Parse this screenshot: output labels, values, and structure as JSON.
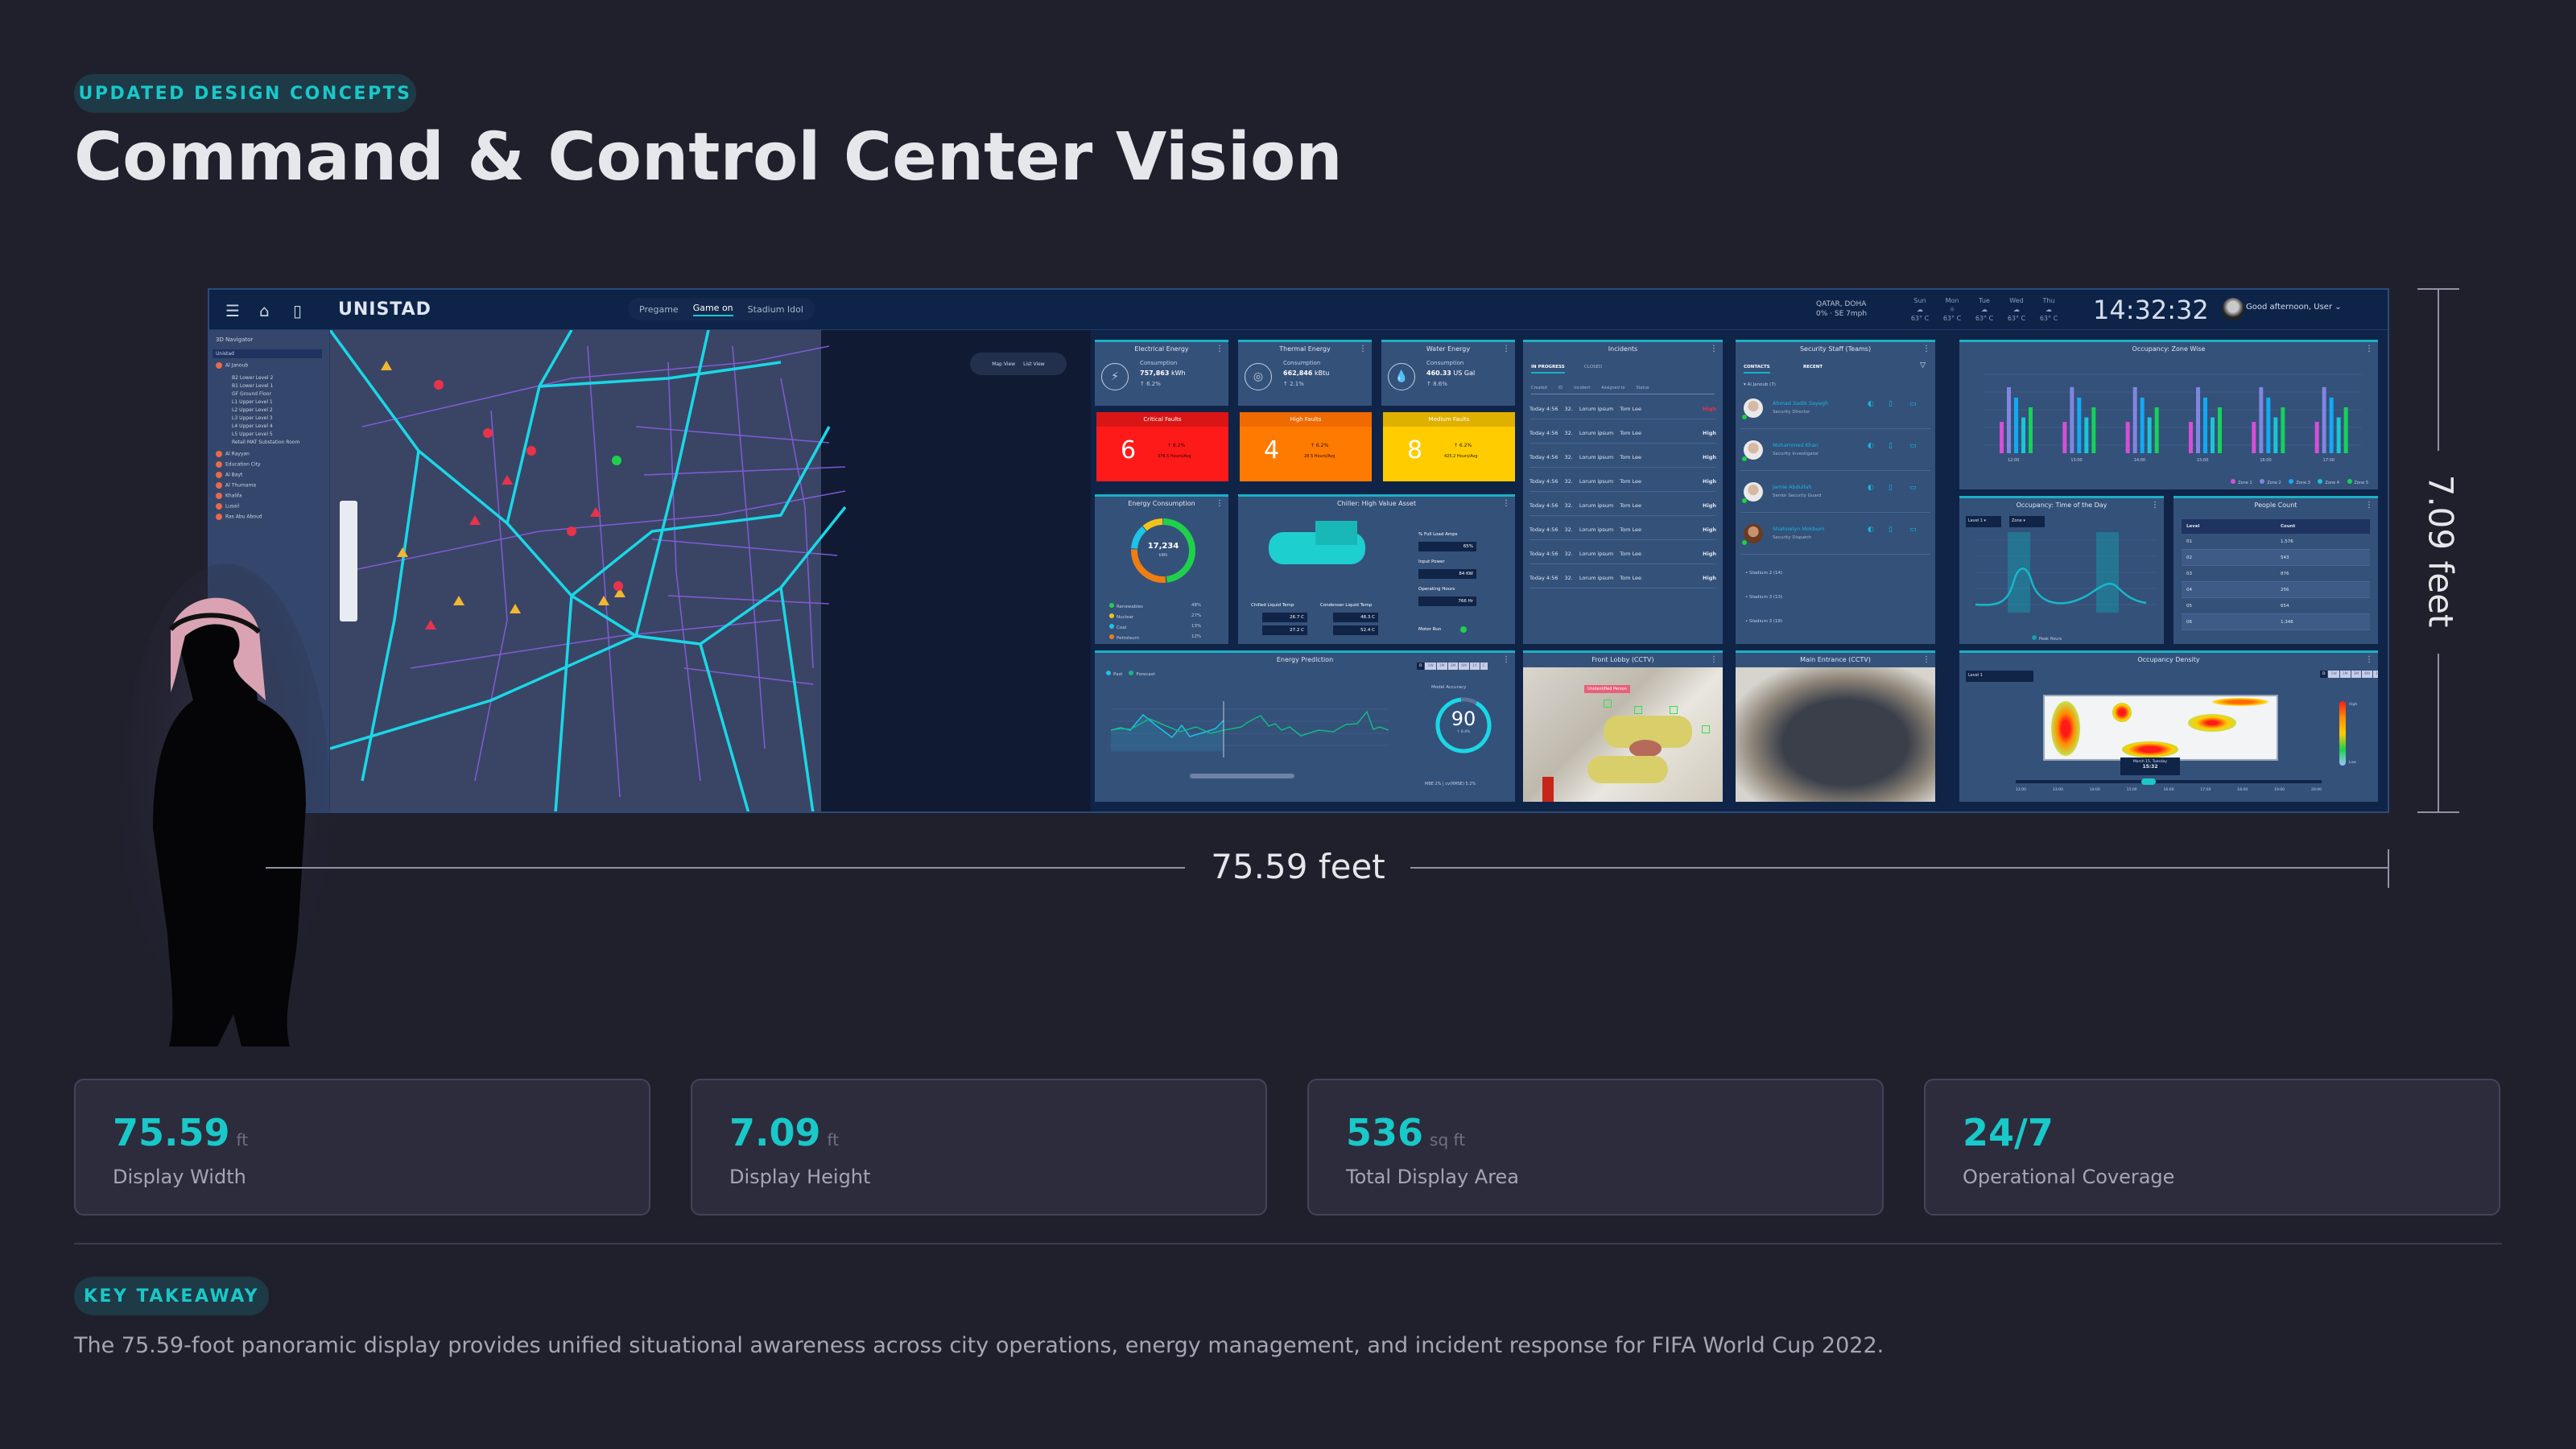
{
  "header": {
    "badge": "UPDATED DESIGN CONCEPTS",
    "title": "Command & Control Center Vision"
  },
  "dashboard": {
    "app_name": "UNISTAD",
    "icons": [
      "menu-icon",
      "home-icon",
      "map-book-icon"
    ],
    "modes": [
      {
        "label": "Pregame",
        "active": false
      },
      {
        "label": "Game on",
        "active": true
      },
      {
        "label": "Stadium Idol",
        "active": false
      }
    ],
    "weather": {
      "location": "QATAR, DOHA",
      "humidity": "0%",
      "wind": "SE 7mph",
      "days": [
        {
          "day": "Sun",
          "temp": "63° C"
        },
        {
          "day": "Mon",
          "temp": "63° C"
        },
        {
          "day": "Tue",
          "temp": "63° C"
        },
        {
          "day": "Wed",
          "temp": "63° C"
        },
        {
          "day": "Thu",
          "temp": "63° C"
        }
      ]
    },
    "clock": "14:32:32",
    "greeting": "Good afternoon, User",
    "navigator": {
      "title": "3D Navigator",
      "root": "Unistad",
      "expanded": "Al Janoub",
      "levels": [
        "B2 Lower Level 2",
        "B1 Lower Level 1",
        "GF Ground Floor",
        "L1 Upper Level 1",
        "L2 Upper Level 2",
        "L3 Upper Level 3",
        "L4 Upper Level 4",
        "L5 Upper Level 5",
        "Retail MAT Substation Room"
      ],
      "stadiums": [
        "Al Rayyan",
        "Education City",
        "Al Bayt",
        "Al Thumama",
        "Khalifa",
        "Lusail",
        "Ras Abu Aboud"
      ]
    },
    "map_view": {
      "map_label": "Map View",
      "list_label": "List View"
    },
    "energy": [
      {
        "title": "Electrical Energy",
        "label": "Consumption",
        "value": "757,863",
        "unit": "kWh",
        "change": "↑ 6.2%",
        "icon": "lightning-icon"
      },
      {
        "title": "Thermal Energy",
        "label": "Consumption",
        "value": "662,846",
        "unit": "kBtu",
        "change": "↑ 2.1%",
        "icon": "flame-icon"
      },
      {
        "title": "Water Energy",
        "label": "Consumption",
        "value": "460.33",
        "unit": "US Gal",
        "change": "↑ 8.6%",
        "icon": "water-drop-icon"
      }
    ],
    "faults": [
      {
        "title": "Critical Faults",
        "count": "6",
        "change": "↑ 6.2%",
        "avg": "376.5 Hours/Avg",
        "color": "#ff1a1a",
        "head": "#d91515"
      },
      {
        "title": "High Faults",
        "count": "4",
        "change": "↑ 6.2%",
        "avg": "28.5 Hours/Avg",
        "color": "#ff7a00",
        "head": "#ef6a00"
      },
      {
        "title": "Medium Faults",
        "count": "8",
        "change": "↑ 6.2%",
        "avg": "425.2 Hours/Avg",
        "color": "#ffcc00",
        "head": "#e0b000"
      }
    ],
    "energy_consumption": {
      "title": "Energy Consumption",
      "total": "17,234",
      "unit": "kWh",
      "legend": [
        {
          "label": "Renewables",
          "pct": "48%",
          "color": "#1fd14a"
        },
        {
          "label": "Nuclear",
          "pct": "27%",
          "color": "#f2c21b"
        },
        {
          "label": "Coal",
          "pct": "13%",
          "color": "#1cc4e6"
        },
        {
          "label": "Petroleum",
          "pct": "12%",
          "color": "#f07d12"
        }
      ]
    },
    "chiller": {
      "title": "Chiller: High Value Asset",
      "chilled_label": "Chilled Liquid Temp",
      "chilled_in": "26.7 C",
      "chilled_out": "27.2 C",
      "condenser_label": "Condenser Liquid Temp",
      "condenser_in": "48.3 C",
      "condenser_out": "52.4 C",
      "fla_label": "% Full Load Amps",
      "fla": "65%",
      "power_label": "Input Power",
      "power": "84 KW",
      "hours_label": "Operating Hours",
      "hours": "766 Hr",
      "motor_label": "Motor Run"
    },
    "prediction": {
      "title": "Energy Prediction",
      "legend_past": "Past",
      "legend_forecast": "Forecast",
      "ranges": [
        "D",
        "1W",
        "1M",
        "3M",
        "6M",
        "1Y",
        "C"
      ],
      "accuracy_label": "Model Accuracy",
      "accuracy": "90",
      "accuracy_sub": "↑ 8.4%",
      "metrics": "MBE 2% | cv(RMSE) 5.2%"
    },
    "incidents": {
      "title": "Incidents",
      "tabs": [
        "IN PROGRESS",
        "CLOSED"
      ],
      "columns": [
        "Created",
        "ID",
        "Incident",
        "Assigned to",
        "Status"
      ],
      "rows": [
        {
          "created": "Today 4:56",
          "id": "32.",
          "incident": "Lorum ipsum",
          "assigned": "Tom Lee",
          "status": "High",
          "alert": true
        },
        {
          "created": "Today 4:56",
          "id": "32.",
          "incident": "Lorum ipsum",
          "assigned": "Tom Lee",
          "status": "High"
        },
        {
          "created": "Today 4:56",
          "id": "32.",
          "incident": "Lorum ipsum",
          "assigned": "Tom Lee",
          "status": "High"
        },
        {
          "created": "Today 4:56",
          "id": "32.",
          "incident": "Lorum ipsum",
          "assigned": "Tom Lee",
          "status": "High"
        },
        {
          "created": "Today 4:56",
          "id": "32.",
          "incident": "Lorum ipsum",
          "assigned": "Tom Lee",
          "status": "High"
        },
        {
          "created": "Today 4:56",
          "id": "32.",
          "incident": "Lorum ipsum",
          "assigned": "Tom Lee",
          "status": "High"
        },
        {
          "created": "Today 4:56",
          "id": "32.",
          "incident": "Lorum ipsum",
          "assigned": "Tom Lee",
          "status": "High"
        },
        {
          "created": "Today 4:56",
          "id": "32.",
          "incident": "Lorum ipsum",
          "assigned": "Tom Lee",
          "status": "High"
        }
      ]
    },
    "security": {
      "title": "Security Staff (Teams)",
      "tabs": [
        "CONTACTS",
        "RECENT"
      ],
      "group": "Al Janoub (7)",
      "contacts": [
        {
          "name": "Ahmad Sadik Sayegh",
          "role": "Security Director"
        },
        {
          "name": "Mohammed Khan",
          "role": "Security Investigator"
        },
        {
          "name": "Jamie Abdullah",
          "role": "Senior Security Guard"
        },
        {
          "name": "Shahnelyn Mokbum",
          "role": "Security Dispatch"
        }
      ],
      "groups": [
        "Stadium 2 (14)",
        "Stadium 3 (13)",
        "Stadium 3 (18)"
      ]
    },
    "cctv": [
      {
        "title": "Front Lobby (CCTV)",
        "alert": "Unidentified Person"
      },
      {
        "title": "Main Entrance (CCTV)"
      }
    ],
    "occupancy_density": {
      "title": "Occupancy Density",
      "level": "Level 1",
      "ranges": [
        "D",
        "1W",
        "1M",
        "3M",
        "6M",
        "1Y",
        "C"
      ],
      "tooltip_date": "March 15, Tuesday",
      "tooltip_time": "15:32",
      "timeline": [
        "12:00",
        "13:00",
        "14:00",
        "15:00",
        "16:00",
        "17:00",
        "18:00",
        "19:00",
        "20:00"
      ],
      "scale_high": "High",
      "scale_low": "Low"
    },
    "occupancy_time": {
      "title": "Occupancy: Time of the Day",
      "level": "Level 1",
      "zone": "Zone",
      "legend": "Peak Hours"
    },
    "people_count": {
      "title": "People Count",
      "columns": [
        "Level",
        "Count"
      ],
      "rows": [
        {
          "level": "01",
          "count": "1,576"
        },
        {
          "level": "02",
          "count": "543"
        },
        {
          "level": "03",
          "count": "876"
        },
        {
          "level": "04",
          "count": "256"
        },
        {
          "level": "05",
          "count": "654"
        },
        {
          "level": "06",
          "count": "1,346"
        }
      ]
    }
  },
  "chart_data": [
    {
      "type": "bar",
      "title": "Occupancy: Zone Wise",
      "ylabel": "Occupancy #",
      "categories": [
        "12:00",
        "13:00",
        "14:00",
        "15:00",
        "16:00",
        "17:00"
      ],
      "series": [
        {
          "name": "Zone 1",
          "color": "#d64fd6",
          "values": [
            90,
            90,
            90,
            90,
            90,
            90
          ]
        },
        {
          "name": "Zone 2",
          "color": "#7f86e0",
          "values": [
            190,
            190,
            190,
            190,
            190,
            190
          ]
        },
        {
          "name": "Zone 3",
          "color": "#13a9f2",
          "values": [
            160,
            160,
            160,
            160,
            160,
            160
          ]
        },
        {
          "name": "Zone 4",
          "color": "#18c6d6",
          "values": [
            103,
            103,
            103,
            103,
            103,
            103
          ]
        },
        {
          "name": "Zone 5",
          "color": "#15d25a",
          "values": [
            132,
            132,
            132,
            132,
            132,
            132
          ]
        }
      ],
      "yticks": [
        50,
        100,
        150,
        200,
        250
      ],
      "ylim": [
        0,
        250
      ],
      "legend_position": "bottom-right"
    },
    {
      "type": "line",
      "title": "Occupancy: Time of the Day",
      "ylabel": "Occupancy #",
      "x": [
        "12:00",
        "13:00",
        "14:00",
        "15:00",
        "16:00",
        "17:00"
      ],
      "values": [
        20,
        140,
        30,
        25,
        110,
        40
      ],
      "yticks": [
        50,
        100,
        150,
        200,
        250
      ],
      "ylim": [
        0,
        250
      ],
      "annotations": [
        "Peak Hours 13:00",
        "Peak Hours 16:00"
      ]
    },
    {
      "type": "line",
      "title": "Energy Prediction",
      "series": [
        {
          "name": "Past",
          "color": "#1cc4e6",
          "values": [
            900,
            950,
            900,
            1350,
            1100,
            800,
            1200,
            820,
            950,
            1000,
            1250
          ]
        },
        {
          "name": "Forecast",
          "color": "#14b884",
          "values": [
            900,
            980,
            900,
            1300,
            1200,
            1050,
            850,
            1150,
            900,
            950,
            900,
            950,
            1000,
            1250,
            1450,
            1050,
            1150,
            950,
            1000,
            800,
            850,
            950,
            900,
            1100,
            1200,
            1550,
            1000,
            1100,
            1000
          ]
        }
      ],
      "yticks": [
        0,
        500,
        1000,
        1500,
        2000
      ]
    },
    {
      "type": "pie",
      "title": "Energy Consumption",
      "categories": [
        "Renewables",
        "Nuclear",
        "Coal",
        "Petroleum"
      ],
      "values": [
        48,
        27,
        13,
        12
      ]
    }
  ],
  "dimensions": {
    "width_label": "75.59 feet",
    "height_label": "7.09 feet"
  },
  "stats": [
    {
      "value": "75.59",
      "unit": "ft",
      "label": "Display Width"
    },
    {
      "value": "7.09",
      "unit": "ft",
      "label": "Display Height"
    },
    {
      "value": "536",
      "unit": "sq ft",
      "label": "Total Display Area"
    },
    {
      "value": "24/7",
      "unit": "",
      "label": "Operational Coverage"
    }
  ],
  "takeaway": {
    "badge": "KEY TAKEAWAY",
    "text": "The 75.59-foot panoramic display provides unified situational awareness across city operations, energy management, and incident response for FIFA World Cup 2022."
  },
  "colors": {
    "accent": "#19c8c8",
    "background": "#20202d",
    "card": "#2c2c3c"
  }
}
